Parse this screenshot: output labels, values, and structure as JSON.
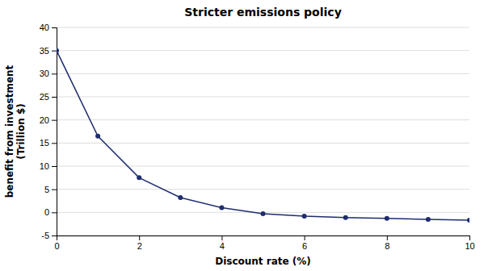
{
  "chart_data": {
    "type": "line",
    "title": "Stricter emissions policy",
    "x_label": "Discount rate (%)",
    "y_label": "benefit from investment\n(Trillion $)",
    "x": [
      0,
      1,
      2,
      3,
      4,
      5,
      6,
      7,
      8,
      9,
      10
    ],
    "values": [
      35.0,
      16.5,
      7.5,
      3.2,
      1.0,
      -0.3,
      -0.8,
      -1.1,
      -1.3,
      -1.5,
      -1.7
    ],
    "color": "#1f2d6e",
    "marker": "circle",
    "xlim": [
      0,
      10
    ],
    "ylim": [
      -5,
      40
    ],
    "xticks": [
      0,
      2,
      4,
      6,
      8,
      10
    ],
    "yticks": [
      -5,
      0,
      5,
      10,
      15,
      20,
      25,
      30,
      35,
      40
    ],
    "grid": true
  }
}
